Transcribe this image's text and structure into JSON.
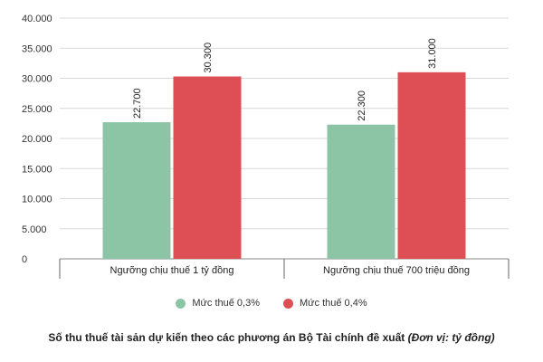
{
  "chart_data": {
    "type": "bar",
    "categories": [
      "Ngưỡng chịu thuế 1 tỷ đồng",
      "Ngưỡng chịu thuế 700 triệu đồng"
    ],
    "series": [
      {
        "name": "Mức thuế 0,3%",
        "values": [
          22700,
          22300
        ],
        "labels": [
          "22.700",
          "22.300"
        ],
        "color": "#8cc5a6"
      },
      {
        "name": "Mức thuế 0,4%",
        "values": [
          30300,
          31000
        ],
        "labels": [
          "30.300",
          "31.000"
        ],
        "color": "#dd4e55"
      }
    ],
    "yticks": [
      0,
      5000,
      10000,
      15000,
      20000,
      25000,
      30000,
      35000,
      40000
    ],
    "ytick_labels": [
      "0",
      "5.000",
      "10.000",
      "15.000",
      "20.000",
      "25.000",
      "30.000",
      "35.000",
      "40.000"
    ],
    "ylim": [
      0,
      40000
    ],
    "grid": true,
    "legend_position": "bottom",
    "title": "Số thu thuế tài sản dự kiến theo các phương án Bộ Tài chính đề xuất",
    "unit_note": "(Đơn vị: tỷ đồng)"
  }
}
